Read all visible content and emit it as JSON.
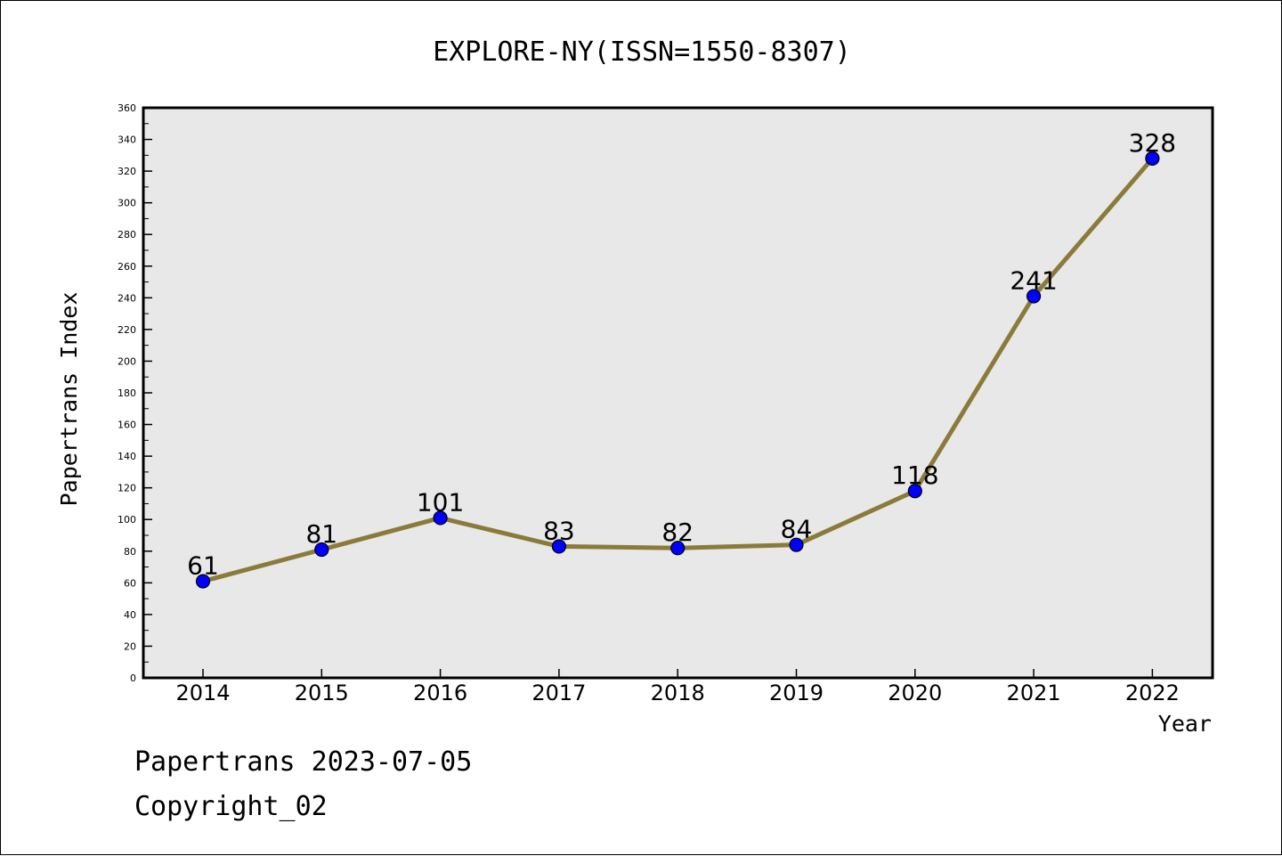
{
  "chart_data": {
    "type": "line",
    "title": "EXPLORE-NY(ISSN=1550-8307)",
    "xlabel": "Year",
    "ylabel": "Papertrans Index",
    "categories": [
      "2014",
      "2015",
      "2016",
      "2017",
      "2018",
      "2019",
      "2020",
      "2021",
      "2022"
    ],
    "series": [
      {
        "values": [
          61,
          81,
          101,
          83,
          82,
          84,
          118,
          241,
          328
        ]
      }
    ],
    "ylim": [
      0,
      360
    ],
    "y_ticks": [
      0,
      20,
      40,
      60,
      80,
      100,
      120,
      140,
      160,
      180,
      200,
      220,
      240,
      260,
      280,
      300,
      320,
      340,
      360
    ],
    "grid": false,
    "legend": "none",
    "data_labels": true
  },
  "footer": {
    "line1": "Papertrans 2023-07-05",
    "line2": "Copyright_02"
  },
  "colors": {
    "line": "#8b7b3a",
    "marker": "#0000ff",
    "plot_background": "#e8e8e8"
  }
}
